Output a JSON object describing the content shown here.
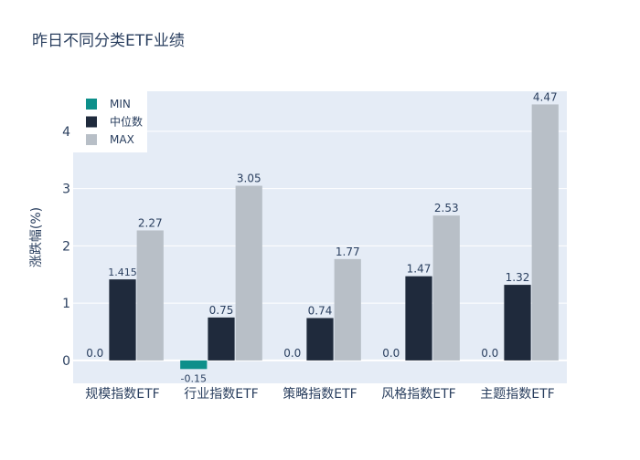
{
  "chart_data": {
    "type": "bar",
    "title": "昨日不同分类ETF业绩",
    "xlabel": "",
    "ylabel": "涨跌幅(%)",
    "categories": [
      "规模指数ETF",
      "行业指数ETF",
      "策略指数ETF",
      "风格指数ETF",
      "主题指数ETF"
    ],
    "series": [
      {
        "name": "MIN",
        "color": "#0d8f8a",
        "values": [
          0.0,
          -0.15,
          0.0,
          0.0,
          0.0
        ],
        "labels": [
          "0.0",
          "-0.15",
          "0.0",
          "0.0",
          "0.0"
        ]
      },
      {
        "name": "中位数",
        "color": "#1f2a3c",
        "values": [
          1.415,
          0.75,
          0.74,
          1.47,
          1.32
        ],
        "labels": [
          "1.415",
          "0.75",
          "0.74",
          "1.47",
          "1.32"
        ]
      },
      {
        "name": "MAX",
        "color": "#b8bfc7",
        "values": [
          2.27,
          3.05,
          1.77,
          2.53,
          4.47
        ],
        "labels": [
          "2.27",
          "3.05",
          "1.77",
          "2.53",
          "4.47"
        ]
      }
    ],
    "ylim": [
      -0.4,
      4.7
    ],
    "yticks": [
      0,
      1,
      2,
      3,
      4
    ],
    "grid": true,
    "legend_position": "top-left",
    "plot_background": "#e5ecf6"
  }
}
